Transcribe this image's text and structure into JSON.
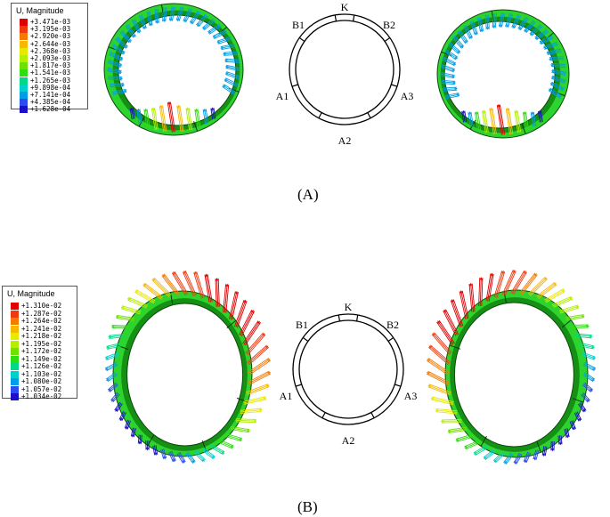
{
  "panels": [
    {
      "caption": "(A)",
      "legend": {
        "title": "U, Magnitude",
        "entries": [
          "+3.471e-03",
          "+3.195e-03",
          "+2.920e-03",
          "+2.644e-03",
          "+2.368e-03",
          "+2.093e-03",
          "+1.817e-03",
          "+1.541e-03",
          "+1.265e-03",
          "+9.898e-04",
          "+7.141e-04",
          "+4.385e-04",
          "+1.628e-04"
        ]
      }
    },
    {
      "caption": "(B)",
      "legend": {
        "title": "U, Magnitude",
        "entries": [
          "+1.310e-02",
          "+1.287e-02",
          "+1.264e-02",
          "+1.241e-02",
          "+1.218e-02",
          "+1.195e-02",
          "+1.172e-02",
          "+1.149e-02",
          "+1.126e-02",
          "+1.103e-02",
          "+1.080e-02",
          "+1.057e-02",
          "+1.034e-02"
        ]
      }
    }
  ],
  "segment_labels": [
    "K",
    "B1",
    "B2",
    "A1",
    "A3",
    "A2"
  ],
  "colors": {
    "scale": [
      "#e00000",
      "#ef3a10",
      "#f57a00",
      "#f8b800",
      "#e8e800",
      "#b4ee00",
      "#6fe000",
      "#2ede10",
      "#00d98a",
      "#00cfd0",
      "#009de6",
      "#2a4cf0",
      "#1a10c8"
    ],
    "ring_green": "#2ed42e",
    "ring_dark": "#159015"
  }
}
